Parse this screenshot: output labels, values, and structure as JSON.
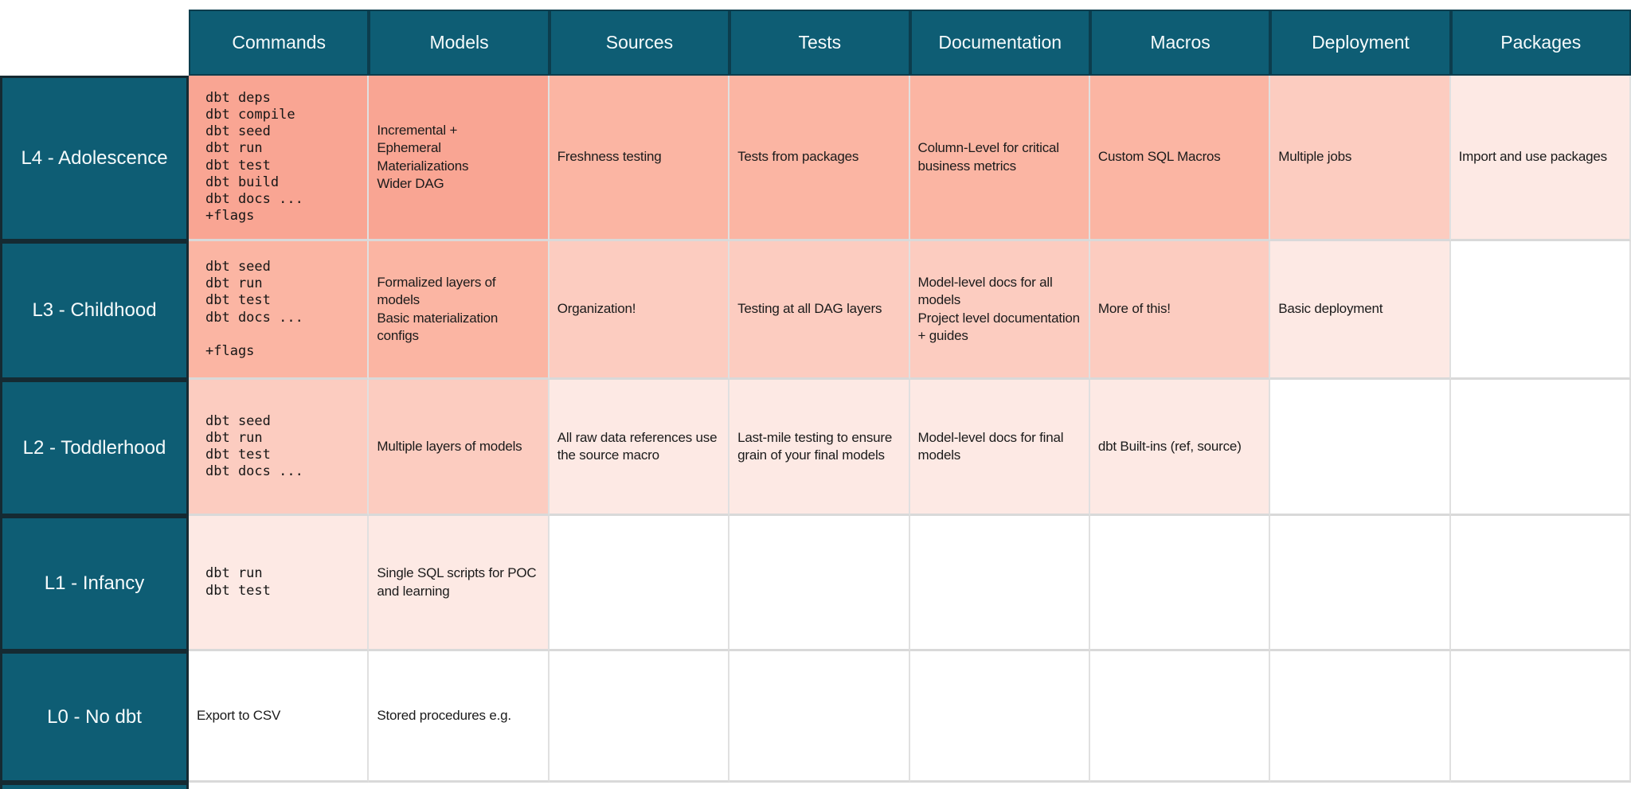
{
  "palette": {
    "teal": "#0e5d74",
    "header_border": "#0c3d4d",
    "label_border": "#152a32",
    "shades": [
      "#f9a593",
      "#fbb5a3",
      "#fcccc0",
      "#fde9e4",
      "#ffffff"
    ],
    "grid_line_horizontal": "#d9d9d9",
    "grid_line_vertical": "#e0e0e0",
    "header_text": "#f5fafb",
    "cell_text": "#1b1b1b"
  },
  "table": {
    "column_headers": [
      "Commands",
      "Models",
      "Sources",
      "Tests",
      "Documentation",
      "Macros",
      "Deployment",
      "Packages"
    ],
    "rows": [
      {
        "label": "L4 - Adolescence",
        "cells": [
          {
            "text": "dbt deps\ndbt compile\ndbt seed\ndbt run\ndbt test\ndbt build\ndbt docs ...\n+flags",
            "mono": true,
            "shade": 0
          },
          {
            "text": "Incremental +\nEphemeral\nMaterializations\nWider DAG",
            "shade": 0
          },
          {
            "text": "Freshness testing",
            "shade": 1
          },
          {
            "text": "Tests from packages",
            "shade": 1
          },
          {
            "text": "Column-Level for critical business metrics",
            "shade": 1
          },
          {
            "text": "Custom SQL Macros",
            "shade": 1
          },
          {
            "text": "Multiple jobs",
            "shade": 2
          },
          {
            "text": "Import and use packages",
            "shade": 3
          }
        ]
      },
      {
        "label": "L3 - Childhood",
        "cells": [
          {
            "text": "dbt seed\ndbt run\ndbt test\ndbt docs ...\n\n+flags",
            "mono": true,
            "shade": 1
          },
          {
            "text": "Formalized layers of models\nBasic materialization configs",
            "shade": 1
          },
          {
            "text": "Organization!",
            "shade": 2
          },
          {
            "text": "Testing at all DAG layers",
            "shade": 2
          },
          {
            "text": "Model-level docs for all models\nProject level documentation + guides",
            "shade": 2
          },
          {
            "text": "More of this!",
            "shade": 2
          },
          {
            "text": "Basic deployment",
            "shade": 3
          },
          {
            "text": "",
            "shade": 4
          }
        ]
      },
      {
        "label": "L2 - Toddlerhood",
        "cells": [
          {
            "text": "dbt seed\ndbt run\ndbt test\ndbt docs ...",
            "mono": true,
            "shade": 2
          },
          {
            "text": "Multiple layers of models",
            "shade": 2
          },
          {
            "text": "All raw data references use the source macro",
            "shade": 3
          },
          {
            "text": "Last-mile testing to ensure grain of your final models",
            "shade": 3
          },
          {
            "text": "Model-level docs for final models",
            "shade": 3
          },
          {
            "text": "dbt Built-ins (ref, source)",
            "shade": 3
          },
          {
            "text": "",
            "shade": 4
          },
          {
            "text": "",
            "shade": 4
          }
        ]
      },
      {
        "label": "L1 - Infancy",
        "cells": [
          {
            "text": "dbt run\ndbt test",
            "mono": true,
            "shade": 3
          },
          {
            "text": "Single SQL scripts for POC and learning",
            "shade": 3
          },
          {
            "text": "",
            "shade": 4
          },
          {
            "text": "",
            "shade": 4
          },
          {
            "text": "",
            "shade": 4
          },
          {
            "text": "",
            "shade": 4
          },
          {
            "text": "",
            "shade": 4
          },
          {
            "text": "",
            "shade": 4
          }
        ]
      },
      {
        "label": "L0 - No dbt",
        "cells": [
          {
            "text": "Export to CSV",
            "shade": 4
          },
          {
            "text": "Stored procedures e.g.",
            "shade": 4
          },
          {
            "text": "",
            "shade": 4
          },
          {
            "text": "",
            "shade": 4
          },
          {
            "text": "",
            "shade": 4
          },
          {
            "text": "",
            "shade": 4
          },
          {
            "text": "",
            "shade": 4
          },
          {
            "text": "",
            "shade": 4
          }
        ]
      }
    ]
  }
}
